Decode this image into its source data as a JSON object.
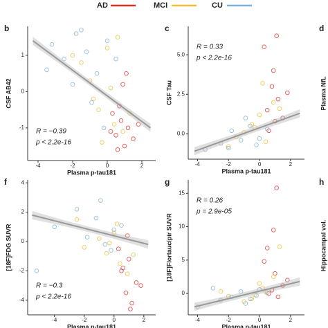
{
  "chart_data": [
    {
      "type": "scatter",
      "panel": "b",
      "x_label": "Plasma p-tau181",
      "y_label": "CSF AB42",
      "xlim": [
        -4.6,
        2.8
      ],
      "ylim": [
        -1.9,
        1.8
      ],
      "xticks": [
        -4,
        -2,
        0,
        2
      ],
      "yticks": [
        -1,
        0,
        1
      ],
      "annotations": [
        "R = −0.39",
        "p < 2.2e-16"
      ],
      "annotation_corner": "bottom-left",
      "fit": {
        "x": [
          -4.3,
          2.5
        ],
        "y": [
          1.4,
          -1.0
        ]
      },
      "series": [
        {
          "name": "AD",
          "color": "#d7302b",
          "x": [
            0.5,
            0.8,
            1.0,
            1.2,
            0.3,
            1.5,
            0.9,
            0.6,
            1.8,
            0.2,
            1.1,
            0.7
          ],
          "values": [
            -1.2,
            -0.8,
            -1.5,
            -1.0,
            -0.6,
            -1.3,
            0.2,
            -1.6,
            -0.9,
            -1.1,
            0.5,
            -0.4
          ]
        },
        {
          "name": "MCI",
          "color": "#f2bd3a",
          "x": [
            -1.5,
            -0.5,
            0.0,
            0.4,
            -1.0,
            0.9,
            -2.0,
            0.2,
            -0.3,
            1.3,
            -0.8,
            0.6
          ],
          "values": [
            0.8,
            -0.5,
            1.2,
            -0.9,
            0.3,
            -1.1,
            1.0,
            0.1,
            -1.4,
            -0.6,
            -0.2,
            1.5
          ]
        },
        {
          "name": "CU",
          "color": "#7fb2d6",
          "x": [
            -3.2,
            -2.5,
            -1.8,
            -1.2,
            -0.6,
            0.0,
            -0.9,
            -2.0,
            0.5,
            -1.5,
            -0.2,
            -3.5
          ],
          "values": [
            1.3,
            0.9,
            1.6,
            1.1,
            0.5,
            1.4,
            -0.3,
            0.2,
            0.9,
            1.7,
            -1.0,
            0.6
          ]
        }
      ]
    },
    {
      "type": "scatter",
      "panel": "c",
      "x_label": "Plasma p-tau181",
      "y_label": "CSF Tau",
      "xlim": [
        -4.6,
        2.9
      ],
      "ylim": [
        -1.6,
        6.8
      ],
      "xticks": [
        -4,
        -2,
        0,
        2
      ],
      "yticks": [
        {
          "value": 0,
          "label": "0.0"
        },
        {
          "value": 2.5,
          "label": "2.5"
        },
        {
          "value": 5,
          "label": "5.0"
        }
      ],
      "annotations": [
        "R = 0.33",
        "p < 2.2e-16"
      ],
      "annotation_corner": "top-left",
      "fit": {
        "x": [
          -4.2,
          2.6
        ],
        "y": [
          -1.1,
          1.3
        ]
      },
      "series": [
        {
          "name": "AD",
          "color": "#d7302b",
          "x": [
            0.5,
            0.8,
            1.0,
            1.2,
            0.3,
            1.5,
            0.9,
            0.6,
            1.8,
            1.1
          ],
          "values": [
            1.5,
            3.0,
            0.8,
            2.2,
            5.5,
            1.0,
            4.0,
            0.2,
            2.6,
            6.2
          ]
        },
        {
          "name": "MCI",
          "color": "#f2bd3a",
          "x": [
            -1.5,
            -0.5,
            0.0,
            0.4,
            -1.0,
            0.9,
            -2.0,
            0.2,
            -0.3,
            1.3
          ],
          "values": [
            -0.2,
            0.6,
            1.2,
            -0.5,
            0.1,
            2.0,
            -0.8,
            3.2,
            0.4,
            1.6
          ]
        },
        {
          "name": "CU",
          "color": "#7fb2d6",
          "x": [
            -3.5,
            -2.5,
            -1.8,
            -1.2,
            -0.6,
            0.0,
            -0.9,
            -2.0,
            0.5,
            -0.2
          ],
          "values": [
            -1.0,
            -0.6,
            0.2,
            -0.4,
            0.5,
            -0.3,
            1.0,
            -0.9,
            0.3,
            -0.7
          ]
        }
      ]
    },
    {
      "type": "scatter",
      "panel": "f",
      "x_label": "Plasma p-tau181",
      "y_label": "[18F]FDG SUVR",
      "xlim": [
        -5.8,
        2.8
      ],
      "ylim": [
        -5.0,
        4.2
      ],
      "xticks": [
        -4,
        -2,
        0,
        2
      ],
      "yticks": [
        -4,
        -2,
        0,
        2,
        4
      ],
      "annotations": [
        "R = −0.3",
        "p < 2.2e-16"
      ],
      "annotation_corner": "bottom-left",
      "fit": {
        "x": [
          -5.5,
          2.3
        ],
        "y": [
          1.8,
          -0.2
        ]
      },
      "series": [
        {
          "name": "AD",
          "color": "#d7302b",
          "x": [
            0.5,
            0.8,
            1.0,
            1.2,
            0.3,
            1.5,
            0.9,
            0.6,
            1.8,
            1.1
          ],
          "values": [
            -2.0,
            -3.5,
            -1.2,
            -4.2,
            -0.5,
            -2.8,
            0.4,
            -1.8,
            -3.0,
            -4.6
          ]
        },
        {
          "name": "MCI",
          "color": "#f2bd3a",
          "x": [
            -2.5,
            -0.5,
            0.0,
            0.4,
            -1.0,
            0.9,
            -2.0,
            0.2,
            -0.3,
            1.3
          ],
          "values": [
            1.5,
            -0.8,
            0.6,
            -1.5,
            0.2,
            -2.2,
            -0.4,
            1.2,
            -0.1,
            -0.9
          ]
        },
        {
          "name": "CU",
          "color": "#7fb2d6",
          "x": [
            -4.0,
            -2.5,
            -1.8,
            -1.2,
            -0.6,
            0.0,
            -0.9,
            -5.2,
            0.5,
            -0.2
          ],
          "values": [
            1.0,
            2.2,
            0.3,
            1.6,
            -0.2,
            0.8,
            2.8,
            -2.0,
            1.1,
            -0.6
          ]
        }
      ]
    },
    {
      "type": "scatter",
      "panel": "g",
      "x_label": "Plasma p-tau181",
      "y_label": "[18F]Flortaucipir SUVR",
      "xlim": [
        -4.6,
        2.9
      ],
      "ylim": [
        -3.2,
        17
      ],
      "xticks": [
        -4,
        -2,
        0,
        2
      ],
      "yticks": [
        0,
        5,
        10,
        15
      ],
      "annotations": [
        "R = 0.26",
        "p = 2.9e-05"
      ],
      "annotation_corner": "top-left",
      "fit": {
        "x": [
          -4.2,
          2.6
        ],
        "y": [
          -2.0,
          1.8
        ]
      },
      "series": [
        {
          "name": "AD",
          "color": "#d7302b",
          "x": [
            0.5,
            0.8,
            1.0,
            1.2,
            0.3,
            1.5,
            0.9,
            0.6,
            1.8,
            1.1
          ],
          "values": [
            6.8,
            0.5,
            3.0,
            -0.5,
            4.8,
            1.2,
            9.5,
            0.0,
            2.0,
            15.8
          ]
        },
        {
          "name": "MCI",
          "color": "#f2bd3a",
          "x": [
            -2.5,
            -0.5,
            0.0,
            0.4,
            -1.0,
            0.9,
            -2.0,
            0.2,
            -0.3,
            1.3
          ],
          "values": [
            0.3,
            -0.8,
            1.5,
            0.2,
            -1.2,
            2.5,
            -0.4,
            0.8,
            -0.2,
            7.0
          ]
        },
        {
          "name": "CU",
          "color": "#7fb2d6",
          "x": [
            -4.0,
            -2.5,
            -1.8,
            -1.2,
            -0.6,
            0.0,
            -0.9,
            -3.0,
            0.5,
            -0.2
          ],
          "values": [
            -2.0,
            -1.0,
            -0.5,
            0.3,
            -0.8,
            0.6,
            -1.5,
            0.8,
            0.1,
            -0.3
          ]
        }
      ]
    }
  ],
  "cropped_panels": [
    {
      "panel": "d",
      "y_label": "Plasma NfL"
    },
    {
      "panel": "h",
      "y_label": "Hippocampal vol."
    }
  ]
}
